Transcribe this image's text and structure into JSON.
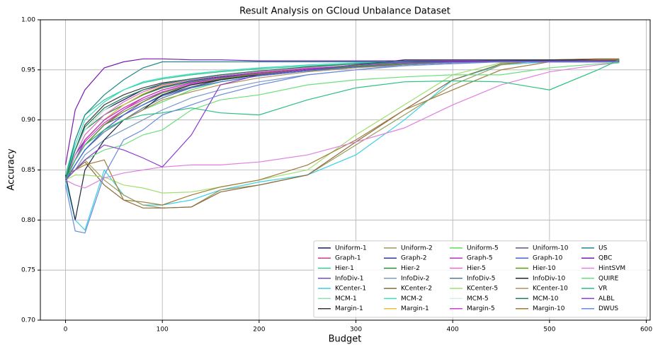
{
  "chart_data": {
    "type": "line",
    "title": "Result Analysis on GCloud Unbalance Dataset",
    "x_label": "Budget",
    "y_label": "Accuracy",
    "x": [
      0,
      10,
      20,
      40,
      60,
      80,
      100,
      130,
      160,
      200,
      250,
      300,
      350,
      400,
      450,
      500,
      550,
      572
    ],
    "xlim": [
      -26,
      604
    ],
    "xticks": [
      0,
      100,
      200,
      300,
      400,
      500,
      600
    ],
    "ylim": [
      0.7,
      1.0
    ],
    "yticks": [
      {
        "value": 0.7,
        "label": "0.70"
      },
      {
        "value": 0.75,
        "label": "0.75"
      },
      {
        "value": 0.8,
        "label": "0.80"
      },
      {
        "value": 0.85,
        "label": "0.85"
      },
      {
        "value": 0.9,
        "label": "0.90"
      },
      {
        "value": 0.95,
        "label": "0.95"
      },
      {
        "value": 1.0,
        "label": "1.00"
      }
    ],
    "grid": true,
    "legend": "lower right",
    "series": [
      {
        "name": "Uniform-1",
        "color": "#1a1a5e",
        "values": [
          0.84,
          0.87,
          0.89,
          0.91,
          0.92,
          0.93,
          0.935,
          0.94,
          0.943,
          0.947,
          0.951,
          0.954,
          0.956,
          0.957,
          0.958,
          0.958,
          0.958,
          0.958
        ]
      },
      {
        "name": "Graph-1",
        "color": "#d03a8c",
        "values": [
          0.84,
          0.86,
          0.875,
          0.895,
          0.91,
          0.922,
          0.93,
          0.937,
          0.942,
          0.946,
          0.95,
          0.953,
          0.955,
          0.957,
          0.958,
          0.958,
          0.959,
          0.959
        ]
      },
      {
        "name": "Hier-1",
        "color": "#3ac49a",
        "values": [
          0.845,
          0.88,
          0.905,
          0.92,
          0.93,
          0.937,
          0.941,
          0.945,
          0.948,
          0.951,
          0.954,
          0.956,
          0.957,
          0.958,
          0.958,
          0.958,
          0.958,
          0.958
        ]
      },
      {
        "name": "InfoDiv-1",
        "color": "#7a4ac8",
        "values": [
          0.84,
          0.855,
          0.87,
          0.89,
          0.905,
          0.918,
          0.928,
          0.936,
          0.941,
          0.946,
          0.95,
          0.953,
          0.956,
          0.957,
          0.958,
          0.958,
          0.958,
          0.958
        ]
      },
      {
        "name": "KCenter-1",
        "color": "#3ad0e6",
        "values": [
          0.84,
          0.8,
          0.79,
          0.85,
          0.825,
          0.815,
          0.815,
          0.82,
          0.83,
          0.838,
          0.845,
          0.865,
          0.9,
          0.94,
          0.955,
          0.958,
          0.959,
          0.959
        ]
      },
      {
        "name": "MCM-1",
        "color": "#8ee0a8",
        "values": [
          0.84,
          0.865,
          0.885,
          0.905,
          0.918,
          0.928,
          0.935,
          0.94,
          0.944,
          0.948,
          0.952,
          0.955,
          0.957,
          0.958,
          0.958,
          0.958,
          0.958,
          0.958
        ]
      },
      {
        "name": "Margin-1",
        "color": "#3a3a3a",
        "values": [
          0.84,
          0.87,
          0.895,
          0.915,
          0.925,
          0.932,
          0.937,
          0.941,
          0.944,
          0.948,
          0.952,
          0.955,
          0.957,
          0.958,
          0.958,
          0.959,
          0.959,
          0.959
        ]
      },
      {
        "name": "Uniform-2",
        "color": "#9a9a5a",
        "values": [
          0.84,
          0.85,
          0.86,
          0.84,
          0.825,
          0.815,
          0.812,
          0.813,
          0.83,
          0.835,
          0.845,
          0.875,
          0.905,
          0.935,
          0.955,
          0.96,
          0.961,
          0.961
        ]
      },
      {
        "name": "Graph-2",
        "color": "#2a3aa0",
        "values": [
          0.84,
          0.865,
          0.88,
          0.9,
          0.915,
          0.925,
          0.933,
          0.939,
          0.943,
          0.947,
          0.951,
          0.954,
          0.956,
          0.957,
          0.958,
          0.958,
          0.958,
          0.958
        ]
      },
      {
        "name": "Hier-2",
        "color": "#2a8a3a",
        "values": [
          0.842,
          0.87,
          0.89,
          0.905,
          0.915,
          0.925,
          0.932,
          0.938,
          0.942,
          0.946,
          0.95,
          0.953,
          0.956,
          0.958,
          0.958,
          0.959,
          0.959,
          0.959
        ]
      },
      {
        "name": "InfoDiv-2",
        "color": "#7a9ac8",
        "values": [
          0.84,
          0.85,
          0.865,
          0.88,
          0.89,
          0.9,
          0.91,
          0.922,
          0.93,
          0.938,
          0.945,
          0.95,
          0.954,
          0.956,
          0.958,
          0.958,
          0.958,
          0.958
        ]
      },
      {
        "name": "KCenter-2",
        "color": "#8a6a3a",
        "values": [
          0.84,
          0.85,
          0.858,
          0.835,
          0.82,
          0.812,
          0.812,
          0.813,
          0.828,
          0.835,
          0.845,
          0.878,
          0.91,
          0.94,
          0.956,
          0.96,
          0.961,
          0.961
        ]
      },
      {
        "name": "MCM-2",
        "color": "#3ae0c0",
        "values": [
          0.84,
          0.875,
          0.9,
          0.918,
          0.93,
          0.938,
          0.942,
          0.946,
          0.949,
          0.952,
          0.955,
          0.957,
          0.958,
          0.958,
          0.958,
          0.958,
          0.958,
          0.958
        ]
      },
      {
        "name": "Margin-1",
        "color": "#e8c040",
        "values": [
          0.84,
          0.86,
          0.88,
          0.9,
          0.915,
          0.926,
          0.934,
          0.94,
          0.944,
          0.948,
          0.952,
          0.955,
          0.957,
          0.958,
          0.958,
          0.958,
          0.958,
          0.958
        ]
      },
      {
        "name": "Uniform-5",
        "color": "#5ae05a",
        "values": [
          0.84,
          0.86,
          0.875,
          0.89,
          0.9,
          0.91,
          0.918,
          0.93,
          0.938,
          0.944,
          0.949,
          0.953,
          0.956,
          0.958,
          0.96,
          0.96,
          0.96,
          0.96
        ]
      },
      {
        "name": "Graph-5",
        "color": "#c030c0",
        "values": [
          0.84,
          0.86,
          0.88,
          0.9,
          0.912,
          0.922,
          0.93,
          0.937,
          0.942,
          0.947,
          0.951,
          0.954,
          0.956,
          0.957,
          0.958,
          0.958,
          0.958,
          0.958
        ]
      },
      {
        "name": "Hier-5",
        "color": "#e070d0",
        "values": [
          0.84,
          0.865,
          0.885,
          0.905,
          0.918,
          0.928,
          0.935,
          0.94,
          0.944,
          0.948,
          0.952,
          0.955,
          0.957,
          0.958,
          0.958,
          0.958,
          0.958,
          0.958
        ]
      },
      {
        "name": "InfoDiv-5",
        "color": "#5a7a9a",
        "values": [
          0.838,
          0.855,
          0.87,
          0.888,
          0.9,
          0.912,
          0.922,
          0.932,
          0.94,
          0.945,
          0.95,
          0.953,
          0.956,
          0.957,
          0.958,
          0.958,
          0.958,
          0.958
        ]
      },
      {
        "name": "KCenter-5",
        "color": "#a0e070",
        "values": [
          0.84,
          0.845,
          0.845,
          0.843,
          0.835,
          0.832,
          0.827,
          0.828,
          0.833,
          0.84,
          0.85,
          0.885,
          0.915,
          0.945,
          0.957,
          0.959,
          0.96,
          0.96
        ]
      },
      {
        "name": "MCM-5",
        "color": "#d0f0e0",
        "values": [
          0.84,
          0.87,
          0.89,
          0.91,
          0.922,
          0.93,
          0.936,
          0.941,
          0.945,
          0.949,
          0.953,
          0.955,
          0.957,
          0.958,
          0.958,
          0.958,
          0.958,
          0.958
        ]
      },
      {
        "name": "Margin-5",
        "color": "#d040d0",
        "values": [
          0.84,
          0.86,
          0.878,
          0.897,
          0.91,
          0.92,
          0.928,
          0.936,
          0.941,
          0.946,
          0.95,
          0.954,
          0.956,
          0.957,
          0.958,
          0.958,
          0.958,
          0.958
        ]
      },
      {
        "name": "Uniform-10",
        "color": "#5a5a7a",
        "values": [
          0.84,
          0.86,
          0.875,
          0.895,
          0.905,
          0.915,
          0.925,
          0.933,
          0.94,
          0.945,
          0.95,
          0.953,
          0.955,
          0.957,
          0.958,
          0.958,
          0.958,
          0.958
        ]
      },
      {
        "name": "Graph-10",
        "color": "#3a6ad0",
        "values": [
          0.84,
          0.855,
          0.87,
          0.89,
          0.905,
          0.915,
          0.924,
          0.932,
          0.938,
          0.944,
          0.949,
          0.953,
          0.956,
          0.957,
          0.958,
          0.958,
          0.958,
          0.958
        ]
      },
      {
        "name": "Hier-10",
        "color": "#5a9a1a",
        "values": [
          0.842,
          0.86,
          0.875,
          0.895,
          0.908,
          0.918,
          0.927,
          0.935,
          0.941,
          0.946,
          0.95,
          0.954,
          0.956,
          0.958,
          0.959,
          0.96,
          0.96,
          0.96
        ]
      },
      {
        "name": "InfoDiv-10",
        "color": "#1a2a3a",
        "values": [
          0.845,
          0.8,
          0.85,
          0.88,
          0.9,
          0.91,
          0.925,
          0.935,
          0.94,
          0.945,
          0.95,
          0.955,
          0.96,
          0.96,
          0.96,
          0.96,
          0.96,
          0.96
        ]
      },
      {
        "name": "KCenter-10",
        "color": "#b09060",
        "values": [
          0.84,
          0.86,
          0.875,
          0.89,
          0.9,
          0.91,
          0.92,
          0.928,
          0.935,
          0.942,
          0.948,
          0.952,
          0.955,
          0.957,
          0.958,
          0.958,
          0.958,
          0.958
        ]
      },
      {
        "name": "MCM-10",
        "color": "#1a7a5a",
        "values": [
          0.84,
          0.87,
          0.893,
          0.912,
          0.922,
          0.93,
          0.936,
          0.941,
          0.945,
          0.949,
          0.953,
          0.956,
          0.958,
          0.959,
          0.959,
          0.959,
          0.959,
          0.959
        ]
      },
      {
        "name": "Margin-10",
        "color": "#a07a3a",
        "values": [
          0.845,
          0.85,
          0.855,
          0.86,
          0.82,
          0.818,
          0.815,
          0.825,
          0.833,
          0.84,
          0.855,
          0.88,
          0.91,
          0.93,
          0.95,
          0.958,
          0.96,
          0.96
        ]
      },
      {
        "name": "US",
        "color": "#1a8a8a",
        "values": [
          0.84,
          0.88,
          0.905,
          0.925,
          0.94,
          0.952,
          0.958,
          0.958,
          0.958,
          0.958,
          0.958,
          0.958,
          0.958,
          0.958,
          0.958,
          0.958,
          0.958,
          0.958
        ]
      },
      {
        "name": "QBC",
        "color": "#7a1ab0",
        "values": [
          0.855,
          0.91,
          0.93,
          0.952,
          0.958,
          0.961,
          0.961,
          0.96,
          0.96,
          0.959,
          0.959,
          0.959,
          0.959,
          0.959,
          0.959,
          0.959,
          0.959,
          0.959
        ]
      },
      {
        "name": "HintSVM",
        "color": "#e080e0",
        "values": [
          0.84,
          0.835,
          0.832,
          0.842,
          0.847,
          0.85,
          0.853,
          0.855,
          0.855,
          0.858,
          0.865,
          0.878,
          0.892,
          0.915,
          0.935,
          0.948,
          0.955,
          0.957
        ]
      },
      {
        "name": "QUIRE",
        "color": "#6ae07a",
        "values": [
          0.84,
          0.85,
          0.86,
          0.87,
          0.875,
          0.885,
          0.89,
          0.91,
          0.92,
          0.925,
          0.935,
          0.94,
          0.943,
          0.945,
          0.945,
          0.952,
          0.956,
          0.957
        ]
      },
      {
        "name": "VR",
        "color": "#2ac080",
        "values": [
          0.84,
          0.86,
          0.875,
          0.89,
          0.9,
          0.905,
          0.907,
          0.912,
          0.907,
          0.905,
          0.92,
          0.932,
          0.938,
          0.939,
          0.938,
          0.93,
          0.95,
          0.96
        ]
      },
      {
        "name": "ALBL",
        "color": "#8a3ad0",
        "values": [
          0.84,
          0.85,
          0.86,
          0.875,
          0.87,
          0.862,
          0.853,
          0.885,
          0.935,
          0.945,
          0.95,
          0.955,
          0.957,
          0.958,
          0.958,
          0.958,
          0.958,
          0.958
        ]
      },
      {
        "name": "DWUS",
        "color": "#6a8ae0",
        "values": [
          0.835,
          0.789,
          0.787,
          0.845,
          0.88,
          0.89,
          0.905,
          0.915,
          0.925,
          0.935,
          0.945,
          0.95,
          0.955,
          0.957,
          0.958,
          0.958,
          0.958,
          0.958
        ]
      }
    ]
  }
}
